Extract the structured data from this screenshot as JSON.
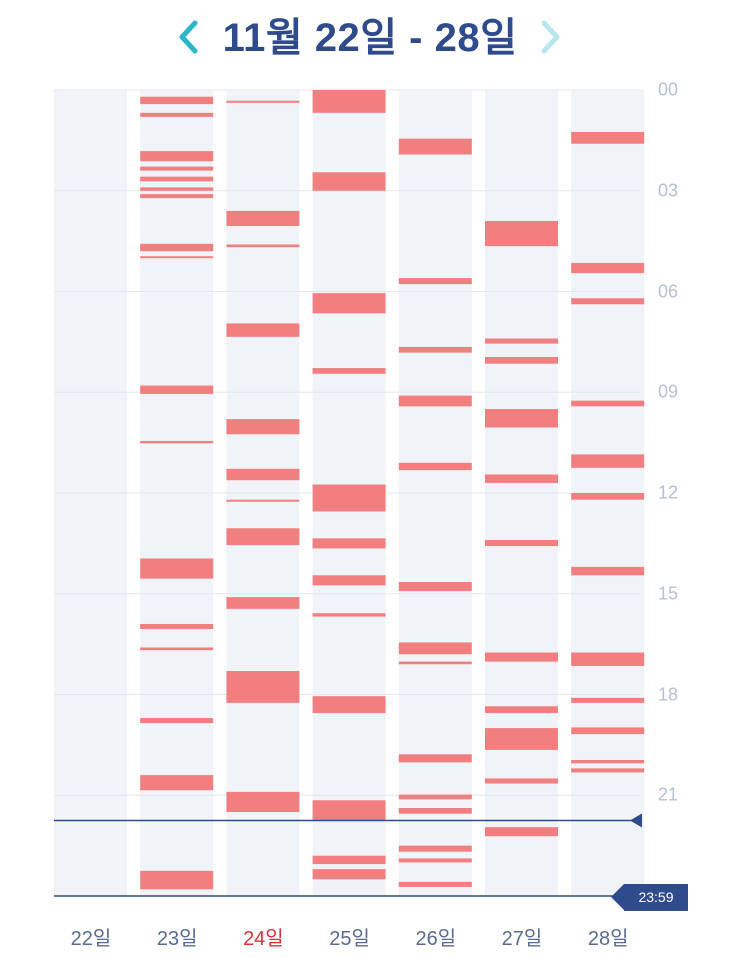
{
  "header": {
    "title": "11월 22일 - 28일",
    "prev_label": "<",
    "next_label": ">"
  },
  "colors": {
    "accent": "#2bb5c9",
    "accent_light": "#b8e6ee",
    "navy": "#2f4b8b",
    "column_bg": "#f0f3f7",
    "bar": "#f27f80",
    "today": "#d9333a",
    "hour_label": "#b6c0d1"
  },
  "hour_labels": [
    "00",
    "03",
    "06",
    "09",
    "12",
    "15",
    "18",
    "21"
  ],
  "markers": {
    "current_time_hour": 21.75,
    "end_time_label": "23:59"
  },
  "days": [
    {
      "label": "22일",
      "is_today": false,
      "segments": []
    },
    {
      "label": "23일",
      "is_today": false,
      "segments": [
        [
          0.2,
          0.42
        ],
        [
          0.68,
          0.8
        ],
        [
          1.82,
          2.12
        ],
        [
          2.28,
          2.4
        ],
        [
          2.58,
          2.72
        ],
        [
          2.9,
          3.0
        ],
        [
          3.1,
          3.22
        ],
        [
          4.58,
          4.8
        ],
        [
          4.95,
          5.0
        ],
        [
          8.8,
          9.05
        ],
        [
          10.45,
          10.52
        ],
        [
          13.95,
          14.55
        ],
        [
          15.9,
          16.05
        ],
        [
          16.6,
          16.68
        ],
        [
          18.7,
          18.85
        ],
        [
          20.4,
          20.85
        ],
        [
          23.25,
          23.8
        ]
      ]
    },
    {
      "label": "24일",
      "is_today": true,
      "segments": [
        [
          0.32,
          0.38
        ],
        [
          3.6,
          4.05
        ],
        [
          4.6,
          4.68
        ],
        [
          6.95,
          7.35
        ],
        [
          9.8,
          10.25
        ],
        [
          11.28,
          11.62
        ],
        [
          12.2,
          12.26
        ],
        [
          13.05,
          13.55
        ],
        [
          15.1,
          15.45
        ],
        [
          17.3,
          18.25
        ],
        [
          20.9,
          21.5
        ]
      ]
    },
    {
      "label": "25일",
      "is_today": false,
      "segments": [
        [
          0.0,
          0.68
        ],
        [
          2.45,
          3.0
        ],
        [
          6.05,
          6.65
        ],
        [
          8.28,
          8.45
        ],
        [
          11.75,
          12.55
        ],
        [
          13.35,
          13.65
        ],
        [
          14.45,
          14.75
        ],
        [
          15.58,
          15.68
        ],
        [
          18.05,
          18.55
        ],
        [
          21.15,
          21.75
        ],
        [
          22.8,
          23.05
        ],
        [
          23.2,
          23.5
        ]
      ]
    },
    {
      "label": "26일",
      "is_today": false,
      "segments": [
        [
          1.45,
          1.92
        ],
        [
          5.6,
          5.78
        ],
        [
          7.65,
          7.82
        ],
        [
          9.1,
          9.42
        ],
        [
          11.1,
          11.32
        ],
        [
          14.65,
          14.92
        ],
        [
          16.45,
          16.8
        ],
        [
          17.02,
          17.1
        ],
        [
          19.78,
          20.02
        ],
        [
          20.98,
          21.12
        ],
        [
          21.38,
          21.55
        ],
        [
          22.5,
          22.68
        ],
        [
          22.88,
          23.0
        ],
        [
          23.58,
          23.73
        ]
      ]
    },
    {
      "label": "27일",
      "is_today": false,
      "segments": [
        [
          3.9,
          4.65
        ],
        [
          7.4,
          7.55
        ],
        [
          7.95,
          8.15
        ],
        [
          9.5,
          10.05
        ],
        [
          11.45,
          11.7
        ],
        [
          13.4,
          13.58
        ],
        [
          16.75,
          17.02
        ],
        [
          18.35,
          18.55
        ],
        [
          19.0,
          19.65
        ],
        [
          20.5,
          20.65
        ],
        [
          21.95,
          22.22
        ]
      ]
    },
    {
      "label": "28일",
      "is_today": false,
      "segments": [
        [
          1.25,
          1.6
        ],
        [
          5.15,
          5.45
        ],
        [
          6.2,
          6.38
        ],
        [
          9.25,
          9.42
        ],
        [
          10.85,
          11.25
        ],
        [
          12.0,
          12.2
        ],
        [
          14.2,
          14.45
        ],
        [
          16.75,
          17.15
        ],
        [
          18.1,
          18.25
        ],
        [
          18.98,
          19.18
        ],
        [
          19.95,
          20.05
        ],
        [
          20.2,
          20.32
        ]
      ]
    }
  ]
}
